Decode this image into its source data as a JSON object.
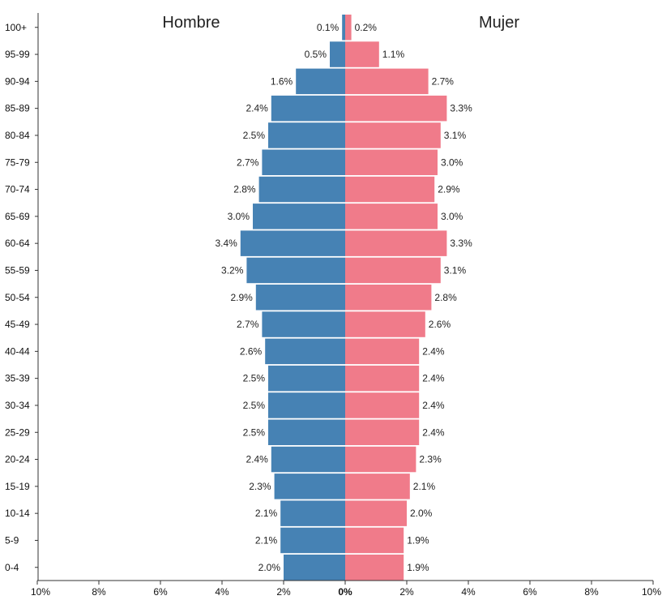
{
  "chart_data": {
    "type": "bar",
    "orientation": "horizontal-population-pyramid",
    "headers": {
      "left": "Hombre",
      "right": "Mujer"
    },
    "categories": [
      "100+",
      "95-99",
      "90-94",
      "85-89",
      "80-84",
      "75-79",
      "70-74",
      "65-69",
      "60-64",
      "55-59",
      "50-54",
      "45-49",
      "40-44",
      "35-39",
      "30-34",
      "25-29",
      "20-24",
      "15-19",
      "10-14",
      "5-9",
      "0-4"
    ],
    "series": [
      {
        "name": "Hombre",
        "color": "#4682b4",
        "values": [
          0.1,
          0.5,
          1.6,
          2.4,
          2.5,
          2.7,
          2.8,
          3.0,
          3.4,
          3.2,
          2.9,
          2.7,
          2.6,
          2.5,
          2.5,
          2.5,
          2.4,
          2.3,
          2.1,
          2.1,
          2.0
        ],
        "labels": [
          "0.1%",
          "0.5%",
          "1.6%",
          "2.4%",
          "2.5%",
          "2.7%",
          "2.8%",
          "3.0%",
          "3.4%",
          "3.2%",
          "2.9%",
          "2.7%",
          "2.6%",
          "2.5%",
          "2.5%",
          "2.5%",
          "2.4%",
          "2.3%",
          "2.1%",
          "2.1%",
          "2.0%"
        ]
      },
      {
        "name": "Mujer",
        "color": "#f07b8a",
        "values": [
          0.2,
          1.1,
          2.7,
          3.3,
          3.1,
          3.0,
          2.9,
          3.0,
          3.3,
          3.1,
          2.8,
          2.6,
          2.4,
          2.4,
          2.4,
          2.4,
          2.3,
          2.1,
          2.0,
          1.9,
          1.9
        ],
        "labels": [
          "0.2%",
          "1.1%",
          "2.7%",
          "3.3%",
          "3.1%",
          "3.0%",
          "2.9%",
          "3.0%",
          "3.3%",
          "3.1%",
          "2.8%",
          "2.6%",
          "2.4%",
          "2.4%",
          "2.4%",
          "2.4%",
          "2.3%",
          "2.1%",
          "2.0%",
          "1.9%",
          "1.9%"
        ]
      }
    ],
    "xlim": [
      -10,
      10
    ],
    "x_ticks": [
      "10%",
      "8%",
      "6%",
      "4%",
      "2%",
      "0%",
      "2%",
      "4%",
      "6%",
      "8%",
      "10%"
    ],
    "grid": false,
    "legend": "none"
  }
}
